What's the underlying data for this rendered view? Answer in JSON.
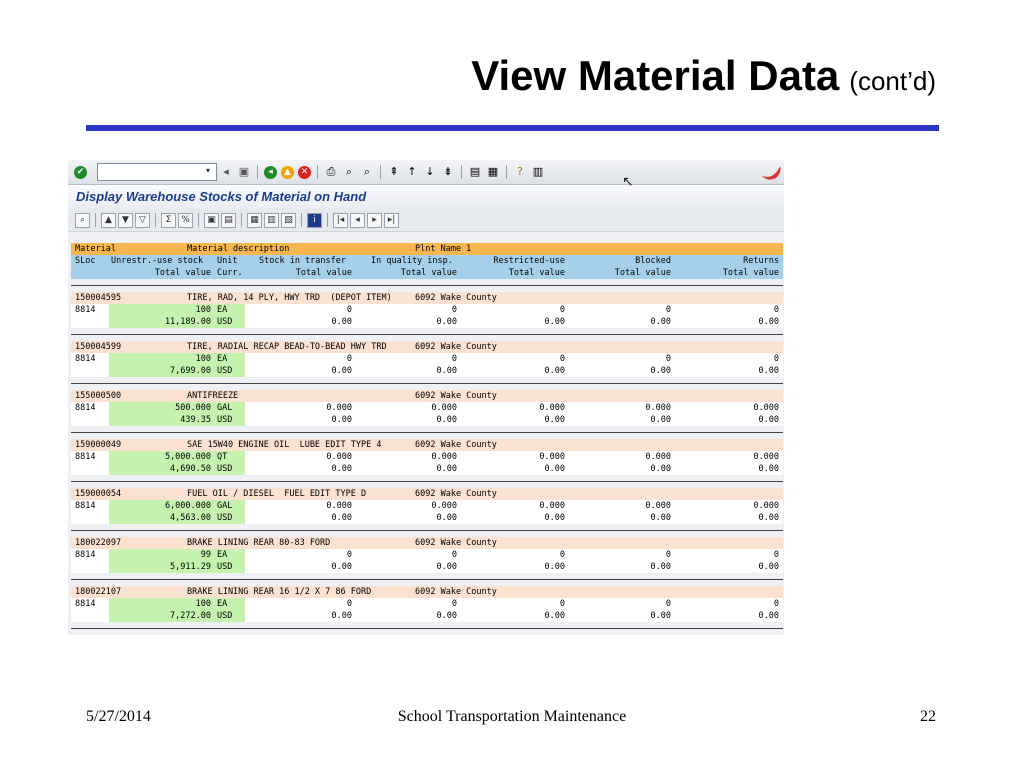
{
  "slide": {
    "title": "View Material Data",
    "subtitle": "(cont’d)",
    "footer_date": "5/27/2014",
    "footer_center": "School Transportation Maintenance",
    "footer_page": "22"
  },
  "sap": {
    "screen_title": "Display Warehouse Stocks of Material on Hand",
    "command_field_value": ""
  },
  "table": {
    "header1": {
      "material": "Material",
      "description": "Material description",
      "plant": "Plnt Name 1"
    },
    "header2": {
      "sloc": "SLoc",
      "unrestr": "Unrestr.-use stock",
      "unit": "Unit",
      "transfer": "Stock in transfer",
      "quality": "In quality insp.",
      "restricted": "Restricted-use",
      "blocked": "Blocked",
      "returns": "Returns"
    },
    "header3": {
      "total_value": "Total value",
      "curr": "Curr.",
      "tv1": "Total value",
      "tv2": "Total value",
      "tv3": "Total value",
      "tv4": "Total value",
      "tv5": "Total value"
    },
    "rows": [
      {
        "material": "150004595",
        "description": "TIRE, RAD, 14 PLY, HWY TRD  (DEPOT ITEM)",
        "plant": "6092 Wake County",
        "sloc": "8814",
        "qty": "100",
        "unit": "EA",
        "transfer": "0",
        "quality": "0",
        "restricted": "0",
        "blocked": "0",
        "returns": "0",
        "value": "11,189.00",
        "curr": "USD",
        "v1": "0.00",
        "v2": "0.00",
        "v3": "0.00",
        "v4": "0.00",
        "v5": "0.00"
      },
      {
        "material": "150004599",
        "description": "TIRE, RADIAL RECAP BEAD-TO-BEAD HWY TRD",
        "plant": "6092 Wake County",
        "sloc": "8814",
        "qty": "100",
        "unit": "EA",
        "transfer": "0",
        "quality": "0",
        "restricted": "0",
        "blocked": "0",
        "returns": "0",
        "value": "7,699.00",
        "curr": "USD",
        "v1": "0.00",
        "v2": "0.00",
        "v3": "0.00",
        "v4": "0.00",
        "v5": "0.00"
      },
      {
        "material": "155000500",
        "description": "ANTIFREEZE",
        "plant": "6092 Wake County",
        "sloc": "8814",
        "qty": "500.000",
        "unit": "GAL",
        "transfer": "0.000",
        "quality": "0.000",
        "restricted": "0.000",
        "blocked": "0.000",
        "returns": "0.000",
        "value": "439.35",
        "curr": "USD",
        "v1": "0.00",
        "v2": "0.00",
        "v3": "0.00",
        "v4": "0.00",
        "v5": "0.00"
      },
      {
        "material": "159000049",
        "description": "SAE 15W40 ENGINE OIL  LUBE EDIT TYPE 4",
        "plant": "6092 Wake County",
        "sloc": "8814",
        "qty": "5,000.000",
        "unit": "QT",
        "transfer": "0.000",
        "quality": "0.000",
        "restricted": "0.000",
        "blocked": "0.000",
        "returns": "0.000",
        "value": "4,690.50",
        "curr": "USD",
        "v1": "0.00",
        "v2": "0.00",
        "v3": "0.00",
        "v4": "0.00",
        "v5": "0.00"
      },
      {
        "material": "159000054",
        "description": "FUEL OIL / DIESEL  FUEL EDIT TYPE D",
        "plant": "6092 Wake County",
        "sloc": "8814",
        "qty": "6,000.000",
        "unit": "GAL",
        "transfer": "0.000",
        "quality": "0.000",
        "restricted": "0.000",
        "blocked": "0.000",
        "returns": "0.000",
        "value": "4,563.00",
        "curr": "USD",
        "v1": "0.00",
        "v2": "0.00",
        "v3": "0.00",
        "v4": "0.00",
        "v5": "0.00"
      },
      {
        "material": "180022097",
        "description": "BRAKE LINING REAR 80-83 FORD",
        "plant": "6092 Wake County",
        "sloc": "8814",
        "qty": "99",
        "unit": "EA",
        "transfer": "0",
        "quality": "0",
        "restricted": "0",
        "blocked": "0",
        "returns": "0",
        "value": "5,911.29",
        "curr": "USD",
        "v1": "0.00",
        "v2": "0.00",
        "v3": "0.00",
        "v4": "0.00",
        "v5": "0.00"
      },
      {
        "material": "180022107",
        "description": "BRAKE LINING REAR 16 1/2 X 7 86 FORD",
        "plant": "6092 Wake County",
        "sloc": "8814",
        "qty": "100",
        "unit": "EA",
        "transfer": "0",
        "quality": "0",
        "restricted": "0",
        "blocked": "0",
        "returns": "0",
        "value": "7,272.00",
        "curr": "USD",
        "v1": "0.00",
        "v2": "0.00",
        "v3": "0.00",
        "v4": "0.00",
        "v5": "0.00"
      }
    ]
  }
}
